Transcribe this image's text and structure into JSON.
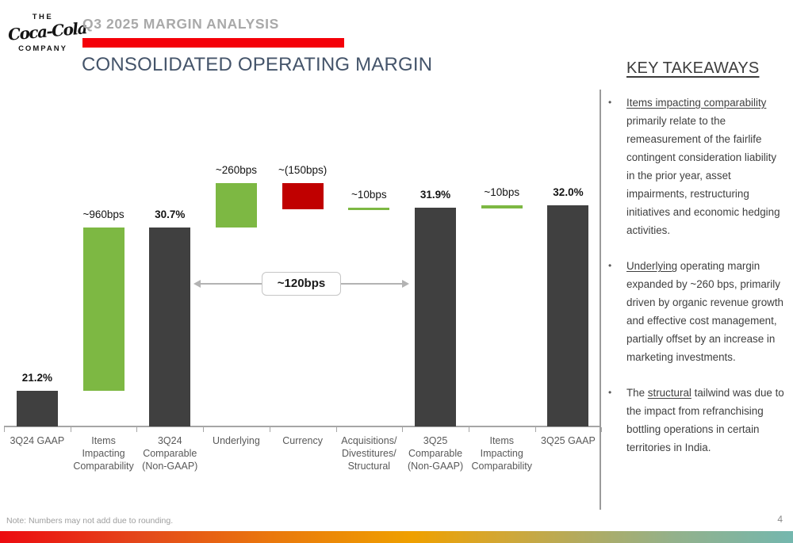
{
  "slide": {
    "eyebrow": "Q3 2025 MARGIN ANALYSIS",
    "title": "CONSOLIDATED OPERATING MARGIN",
    "logo": {
      "top": "THE",
      "script": "Coca-Cola",
      "bottom": "COMPANY"
    },
    "footer_note": "Note: Numbers may not add due to rounding.",
    "page_number": "4"
  },
  "colors": {
    "accent_red": "#f40009",
    "eyebrow_gray": "#a9a9a9",
    "subtitle_slate": "#44546a",
    "dark_bar": "#404040",
    "increase_green": "#7db843",
    "decrease_red": "#c00000",
    "axis_gray": "#a6a6a6"
  },
  "chart_data": {
    "type": "bar",
    "subtype": "waterfall",
    "title": "Consolidated Operating Margin",
    "unit": "percent of revenue",
    "ylim": [
      19.1,
      34.5
    ],
    "grid": false,
    "bars": [
      {
        "category_lines": [
          "3Q24 GAAP"
        ],
        "value_label": "21.2%",
        "kind": "total",
        "value": 21.2
      },
      {
        "category_lines": [
          "Items",
          "Impacting",
          "Comparability"
        ],
        "value_label": "~960bps",
        "kind": "delta",
        "from": 21.2,
        "to": 30.7
      },
      {
        "category_lines": [
          "3Q24",
          "Comparable",
          "(Non-GAAP)"
        ],
        "value_label": "30.7%",
        "kind": "total",
        "value": 30.7
      },
      {
        "category_lines": [
          "Underlying"
        ],
        "value_label": "~260bps",
        "kind": "delta",
        "from": 30.7,
        "to": 33.3
      },
      {
        "category_lines": [
          "Currency"
        ],
        "value_label": "~(150bps)",
        "kind": "delta",
        "from": 33.3,
        "to": 31.8
      },
      {
        "category_lines": [
          "Acquisitions/",
          "Divestitures/",
          "Structural"
        ],
        "value_label": "~10bps",
        "kind": "delta",
        "from": 31.8,
        "to": 31.9
      },
      {
        "category_lines": [
          "3Q25",
          "Comparable",
          "(Non-GAAP)"
        ],
        "value_label": "31.9%",
        "kind": "total",
        "value": 31.9
      },
      {
        "category_lines": [
          "Items",
          "Impacting",
          "Comparability"
        ],
        "value_label": "~10bps",
        "kind": "delta",
        "from": 31.9,
        "to": 32.0
      },
      {
        "category_lines": [
          "3Q25 GAAP"
        ],
        "value_label": "32.0%",
        "kind": "total",
        "value": 32.0
      }
    ],
    "bridge_annotation": {
      "label": "~120bps",
      "from_category": "3Q24 Comparable (Non-GAAP)",
      "to_category": "3Q25 Comparable (Non-GAAP)"
    }
  },
  "takeaways": {
    "title": "KEY TAKEAWAYS",
    "bullets": [
      {
        "pre": "",
        "lead": "Items impacting comparability",
        "rest": " primarily relate to the remeasurement of the fairlife contingent consideration liability in the prior year, asset impairments, restructuring initiatives and economic hedging activities."
      },
      {
        "pre": "",
        "lead": "Underlying",
        "rest": " operating margin expanded by ~260 bps, primarily driven by organic revenue growth and effective cost management, partially offset by an increase in marketing investments."
      },
      {
        "pre": "The ",
        "lead": "structural",
        "rest": " tailwind was due to the impact from refranchising bottling operations in certain territories in India."
      }
    ]
  }
}
